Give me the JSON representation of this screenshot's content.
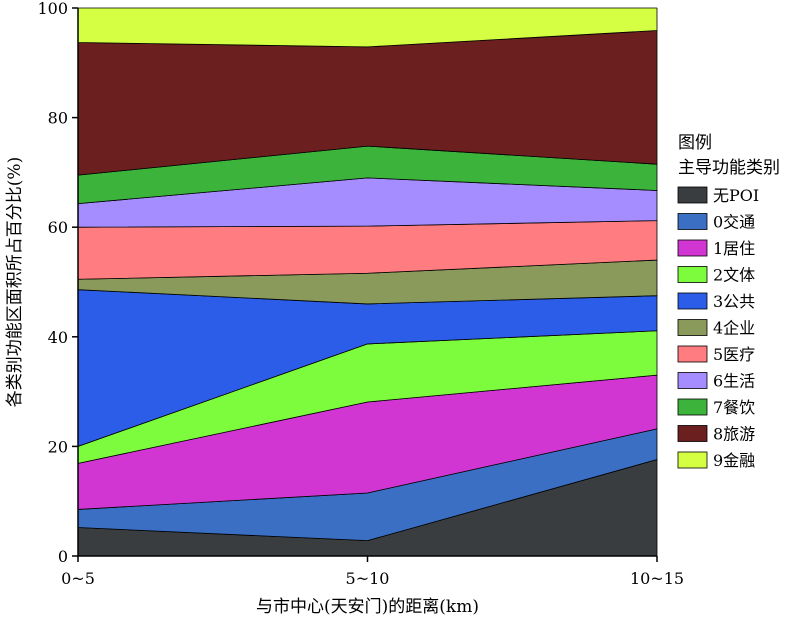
{
  "chart_data": {
    "type": "area",
    "stacked": true,
    "categories": [
      "0~5",
      "5~10",
      "10~15"
    ],
    "xlabel": "与市中心(天安门)的距离(km)",
    "ylabel": "各类别功能区面积所占百分比(%)",
    "ylim": [
      0,
      100
    ],
    "yticks": [
      0,
      20,
      40,
      60,
      80,
      100
    ],
    "grid": false,
    "legend": {
      "title": "图例",
      "subtitle": "主导功能类别",
      "position": "right"
    },
    "series": [
      {
        "name": "无POI",
        "color": "#3a3d40",
        "values": [
          5.2,
          2.8,
          17.6
        ]
      },
      {
        "name": "0交通",
        "color": "#3a6fc4",
        "values": [
          3.3,
          8.7,
          5.6
        ]
      },
      {
        "name": "1居住",
        "color": "#d236d2",
        "values": [
          8.4,
          16.6,
          9.8
        ]
      },
      {
        "name": "2文体",
        "color": "#7cfc3c",
        "values": [
          3.1,
          10.6,
          8.1
        ]
      },
      {
        "name": "3公共",
        "color": "#2b5de8",
        "values": [
          28.6,
          7.3,
          6.4
        ]
      },
      {
        "name": "4企业",
        "color": "#8a9a5b",
        "values": [
          1.9,
          5.6,
          6.5
        ]
      },
      {
        "name": "5医疗",
        "color": "#ff7c80",
        "values": [
          9.5,
          8.6,
          7.2
        ]
      },
      {
        "name": "6生活",
        "color": "#a58cff",
        "values": [
          4.3,
          8.8,
          5.5
        ]
      },
      {
        "name": "7餐饮",
        "color": "#3cb43c",
        "values": [
          5.2,
          5.8,
          4.8
        ]
      },
      {
        "name": "8旅游",
        "color": "#6b1f1f",
        "values": [
          24.2,
          18.1,
          24.4
        ]
      },
      {
        "name": "9金融",
        "color": "#d4ff42",
        "values": [
          6.3,
          7.1,
          4.1
        ]
      }
    ]
  }
}
